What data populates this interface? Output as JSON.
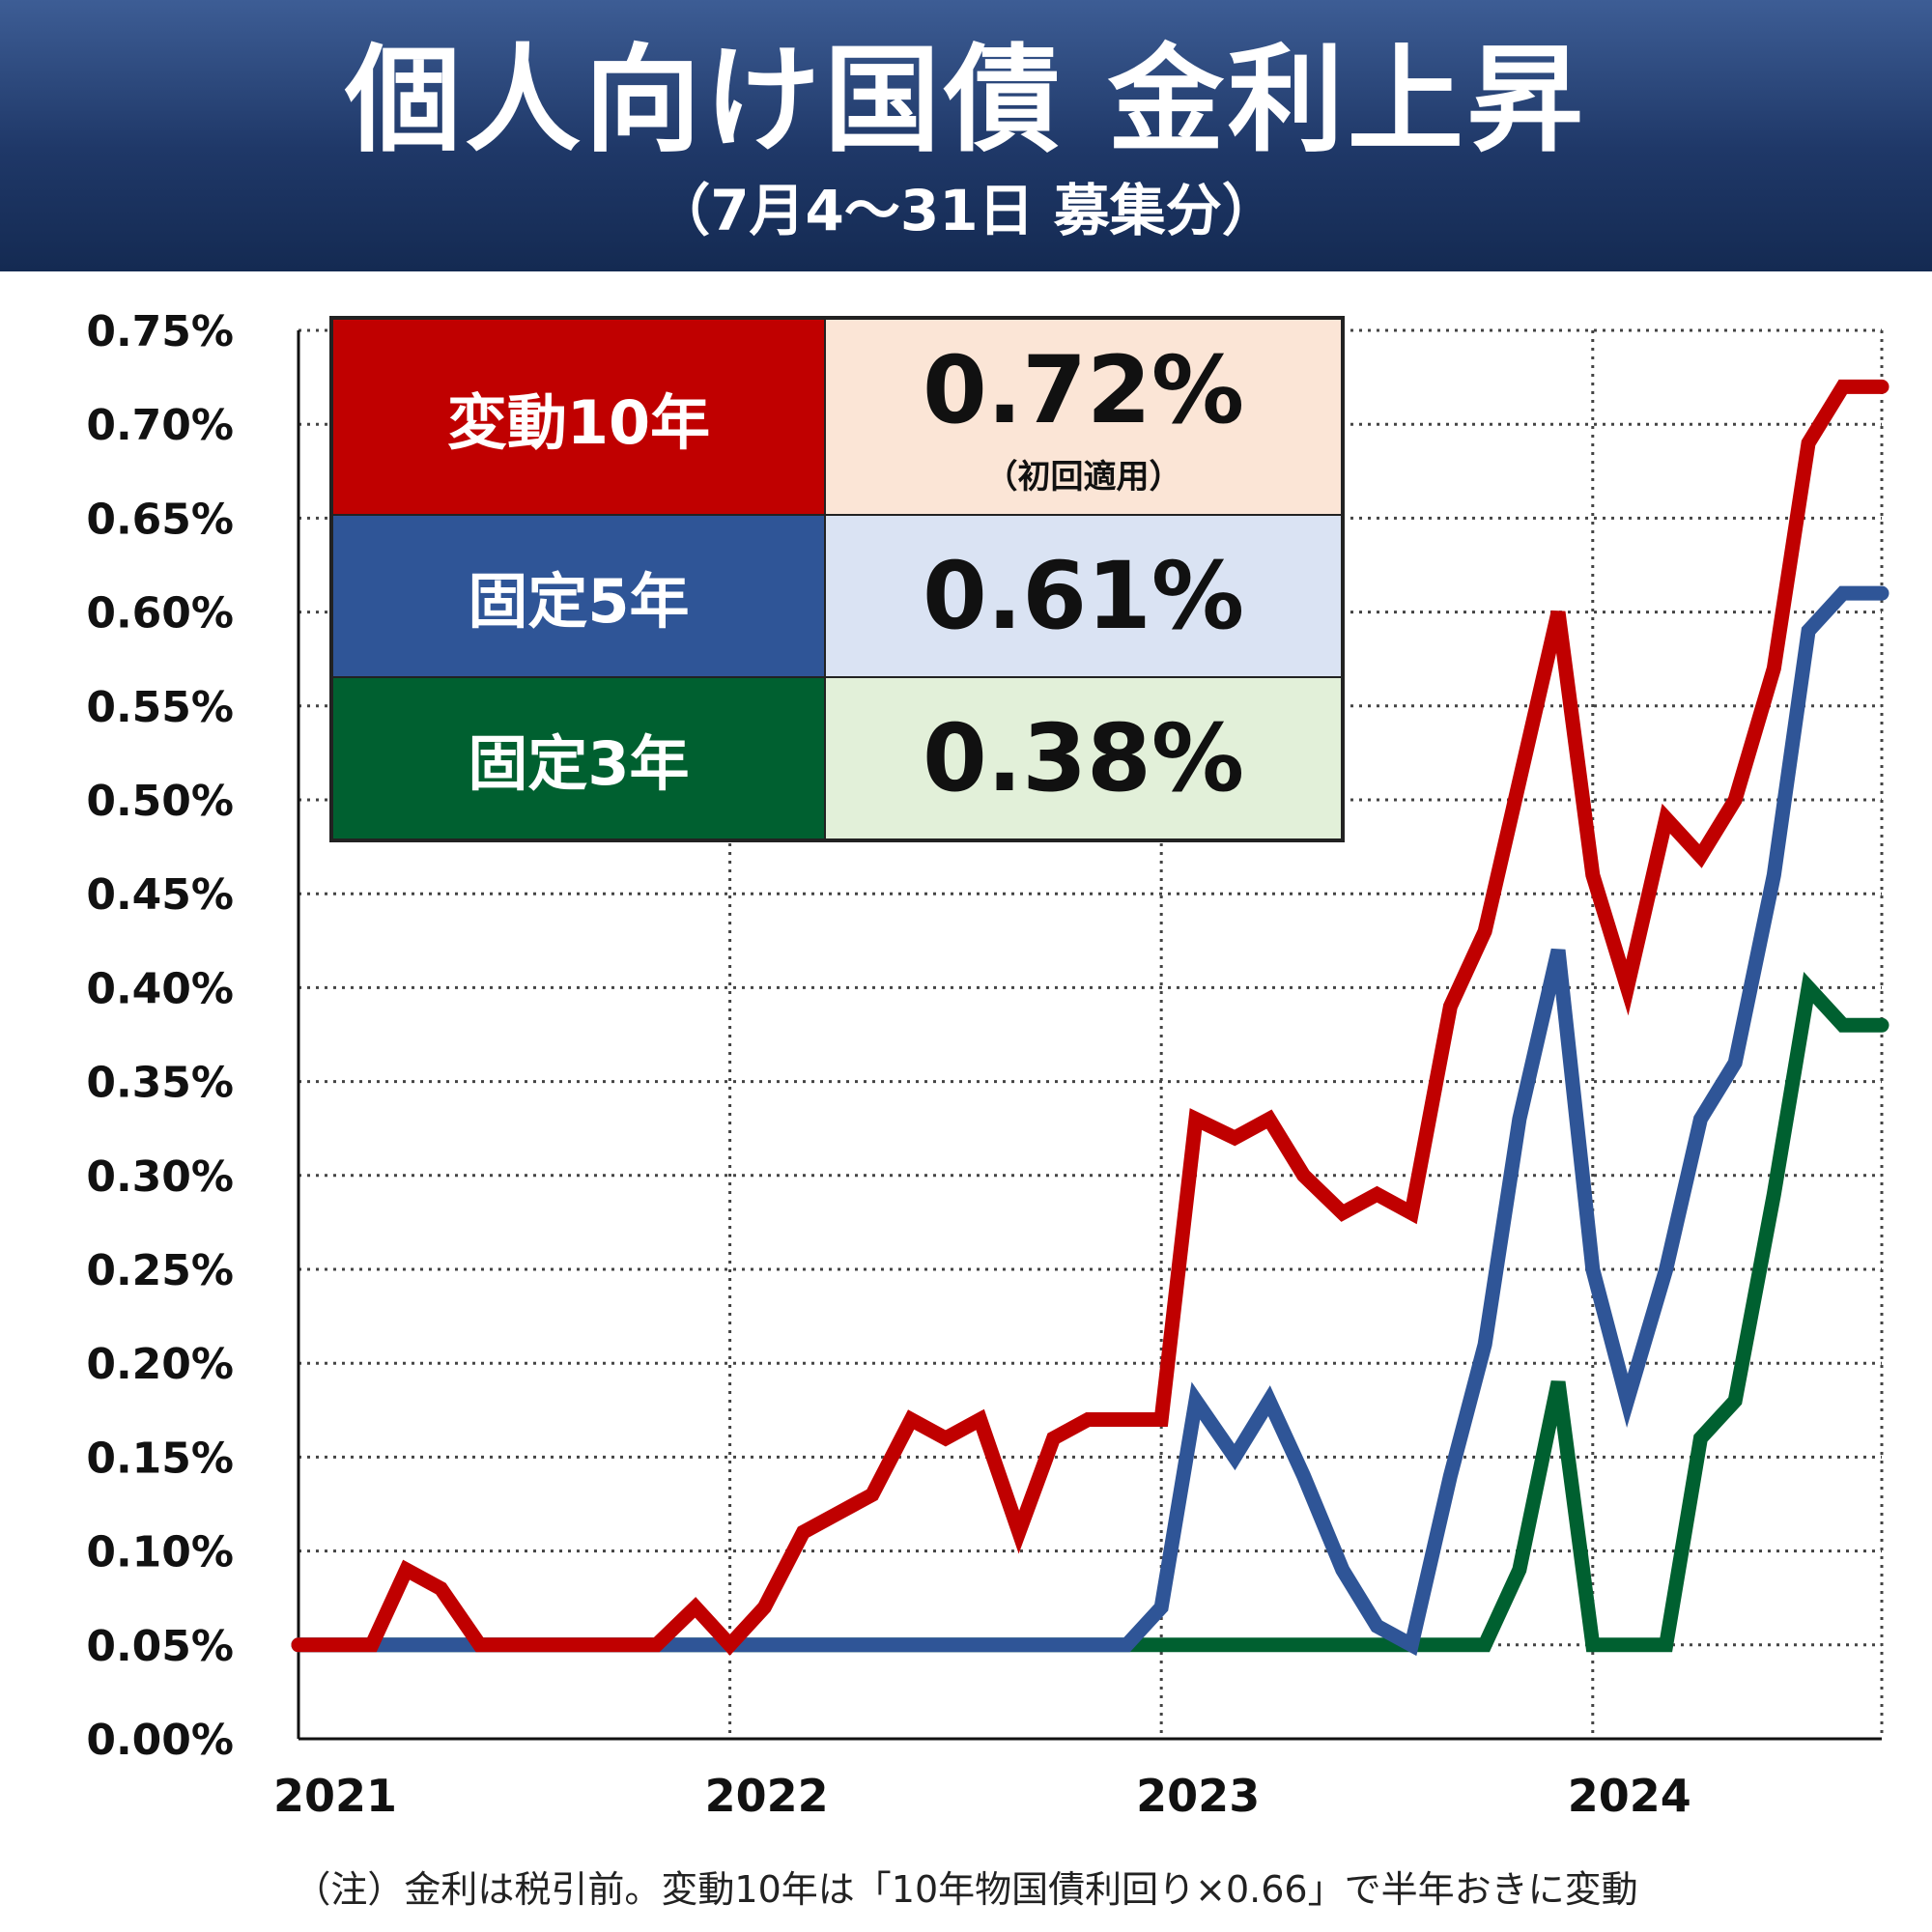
{
  "header": {
    "title": "個人向け国債 金利上昇",
    "subtitle": "（7月4〜31日 募集分）"
  },
  "legend_table": [
    {
      "label": "変動10年",
      "value": "0.72%",
      "note": "（初回適用）",
      "label_bg": "#c00000",
      "value_bg": "#fbe5d6"
    },
    {
      "label": "固定5年",
      "value": "0.61%",
      "note": "",
      "label_bg": "#2f5597",
      "value_bg": "#dae3f3"
    },
    {
      "label": "固定3年",
      "value": "0.38%",
      "note": "",
      "label_bg": "#006030",
      "value_bg": "#e2f0d9"
    }
  ],
  "footnote": "（注）金利は税引前。変動10年は「10年物国債利回り×0.66」で半年おきに変動",
  "chart_data": {
    "type": "line",
    "title": "個人向け国債 金利上昇",
    "subtitle": "（7月4〜31日 募集分）",
    "xlabel": "",
    "ylabel": "",
    "ylim": [
      0,
      0.75
    ],
    "xlim": [
      2021,
      2024.67
    ],
    "yticks": [
      "0.00%",
      "0.05%",
      "0.10%",
      "0.15%",
      "0.20%",
      "0.25%",
      "0.30%",
      "0.35%",
      "0.40%",
      "0.45%",
      "0.50%",
      "0.55%",
      "0.60%",
      "0.65%",
      "0.70%",
      "0.75%"
    ],
    "yticks_values": [
      0,
      0.05,
      0.1,
      0.15,
      0.2,
      0.25,
      0.3,
      0.35,
      0.4,
      0.45,
      0.5,
      0.55,
      0.6,
      0.65,
      0.7,
      0.75
    ],
    "xticks": [
      "2021",
      "2022",
      "2023",
      "2024"
    ],
    "xticks_values": [
      2021,
      2022,
      2023,
      2024
    ],
    "grid": true,
    "series": [
      {
        "name": "変動10年",
        "color": "#c00000",
        "x": [
          2021.0,
          2021.17,
          2021.25,
          2021.33,
          2021.42,
          2021.5,
          2021.58,
          2021.67,
          2021.75,
          2021.83,
          2021.92,
          2022.0,
          2022.08,
          2022.17,
          2022.25,
          2022.33,
          2022.42,
          2022.5,
          2022.58,
          2022.67,
          2022.75,
          2022.83,
          2022.92,
          2023.0,
          2023.08,
          2023.17,
          2023.25,
          2023.33,
          2023.42,
          2023.5,
          2023.58,
          2023.67,
          2023.75,
          2023.83,
          2023.92,
          2024.0,
          2024.08,
          2024.17,
          2024.25,
          2024.33,
          2024.42,
          2024.5,
          2024.58,
          2024.67
        ],
        "values": [
          0.05,
          0.05,
          0.09,
          0.08,
          0.05,
          0.05,
          0.05,
          0.05,
          0.05,
          0.05,
          0.07,
          0.05,
          0.07,
          0.11,
          0.12,
          0.13,
          0.17,
          0.16,
          0.17,
          0.11,
          0.16,
          0.17,
          0.17,
          0.17,
          0.33,
          0.32,
          0.33,
          0.3,
          0.28,
          0.29,
          0.28,
          0.39,
          0.43,
          0.51,
          0.6,
          0.46,
          0.4,
          0.49,
          0.47,
          0.5,
          0.57,
          0.69,
          0.72,
          0.72
        ]
      },
      {
        "name": "固定5年",
        "color": "#2f5597",
        "x": [
          2021.0,
          2022.92,
          2023.0,
          2023.08,
          2023.17,
          2023.25,
          2023.33,
          2023.42,
          2023.5,
          2023.58,
          2023.67,
          2023.75,
          2023.83,
          2023.92,
          2024.0,
          2024.08,
          2024.17,
          2024.25,
          2024.33,
          2024.42,
          2024.5,
          2024.58,
          2024.67
        ],
        "values": [
          0.05,
          0.05,
          0.07,
          0.18,
          0.15,
          0.18,
          0.14,
          0.09,
          0.06,
          0.05,
          0.14,
          0.21,
          0.33,
          0.42,
          0.25,
          0.18,
          0.25,
          0.33,
          0.36,
          0.46,
          0.59,
          0.61,
          0.61
        ]
      },
      {
        "name": "固定3年",
        "color": "#006030",
        "x": [
          2021.0,
          2023.75,
          2023.83,
          2023.92,
          2024.0,
          2024.08,
          2024.17,
          2024.25,
          2024.33,
          2024.42,
          2024.5,
          2024.58,
          2024.67
        ],
        "values": [
          0.05,
          0.05,
          0.09,
          0.19,
          0.05,
          0.05,
          0.05,
          0.16,
          0.18,
          0.29,
          0.4,
          0.38,
          0.38
        ]
      }
    ]
  }
}
